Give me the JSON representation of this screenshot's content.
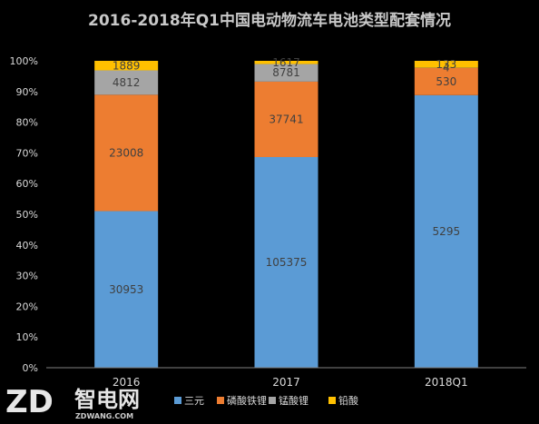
{
  "chart_data": {
    "type": "bar",
    "stacked": "percent",
    "title": "2016-2018年Q1中国电动物流车电池类型配套情况",
    "categories": [
      "2016",
      "2017",
      "2018Q1"
    ],
    "series": [
      {
        "name": "三元",
        "color": "#5b9bd5",
        "values": [
          30953,
          105375,
          5295
        ]
      },
      {
        "name": "磷酸铁锂",
        "color": "#ed7d31",
        "values": [
          23008,
          37741,
          530
        ]
      },
      {
        "name": "锰酸锂",
        "color": "#a5a5a5",
        "values": [
          4812,
          8781,
          4
        ]
      },
      {
        "name": "铅酸",
        "color": "#ffc000",
        "values": [
          1889,
          1617,
          133
        ]
      }
    ],
    "y_ticks": [
      "0%",
      "10%",
      "20%",
      "30%",
      "40%",
      "50%",
      "60%",
      "70%",
      "80%",
      "90%",
      "100%"
    ],
    "ylim": [
      0,
      100
    ],
    "grid": false,
    "legend_position": "bottom"
  },
  "colors": {
    "background": "#000000",
    "text": "#d9d9d9",
    "title": "#c8c8c8",
    "axis": "#7f7f7f"
  },
  "watermark": {
    "brand": "ZD",
    "name": "智电网",
    "site": "ZDWANG.COM"
  }
}
